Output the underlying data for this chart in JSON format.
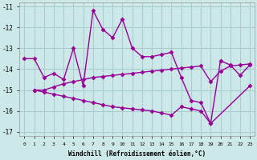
{
  "series1_x": [
    0,
    1,
    2,
    3,
    4,
    5,
    6,
    7,
    8,
    9,
    10,
    11,
    12,
    13,
    14,
    15,
    16,
    17,
    18,
    19,
    20,
    21,
    22,
    23
  ],
  "series1_y": [
    -13.5,
    -13.5,
    -14.4,
    -14.2,
    -14.5,
    -13.0,
    -14.8,
    -11.2,
    -12.1,
    -12.5,
    -11.6,
    -13.0,
    -13.4,
    -13.4,
    -13.3,
    -13.2,
    -14.4,
    -15.5,
    -15.6,
    -16.6,
    -13.6,
    -13.8,
    -14.3,
    -13.8
  ],
  "series2_x": [
    1,
    2,
    3,
    4,
    5,
    6,
    7,
    8,
    9,
    10,
    11,
    12,
    13,
    14,
    15,
    16,
    17,
    18,
    19,
    20,
    21,
    22,
    23
  ],
  "series2_y": [
    -15.0,
    -15.0,
    -14.85,
    -14.7,
    -14.6,
    -14.5,
    -14.4,
    -14.35,
    -14.3,
    -14.25,
    -14.2,
    -14.15,
    -14.1,
    -14.05,
    -14.0,
    -13.95,
    -13.9,
    -13.85,
    -14.6,
    -14.1,
    -13.85,
    -13.8,
    -13.75
  ],
  "series3_x": [
    1,
    2,
    3,
    4,
    5,
    6,
    7,
    8,
    9,
    10,
    11,
    12,
    13,
    14,
    15,
    16,
    17,
    18,
    19,
    23
  ],
  "series3_y": [
    -15.0,
    -15.1,
    -15.2,
    -15.3,
    -15.4,
    -15.5,
    -15.6,
    -15.7,
    -15.8,
    -15.85,
    -15.9,
    -15.95,
    -16.0,
    -16.1,
    -16.2,
    -15.8,
    -15.9,
    -16.0,
    -16.6,
    -14.8
  ],
  "color": "#990099",
  "bg_color": "#cce8e8",
  "grid_color": "#aacece",
  "xlabel": "Windchill (Refroidissement éolien,°C)",
  "ylim": [
    -17.2,
    -10.8
  ],
  "xlim": [
    -0.5,
    23.5
  ],
  "yticks": [
    -17,
    -16,
    -15,
    -14,
    -13,
    -12,
    -11
  ],
  "xticks": [
    0,
    1,
    2,
    3,
    4,
    5,
    6,
    7,
    8,
    9,
    10,
    11,
    12,
    13,
    14,
    15,
    16,
    17,
    18,
    19,
    20,
    21,
    22,
    23
  ],
  "marker": "D",
  "markersize": 2.5,
  "linewidth": 1.0
}
